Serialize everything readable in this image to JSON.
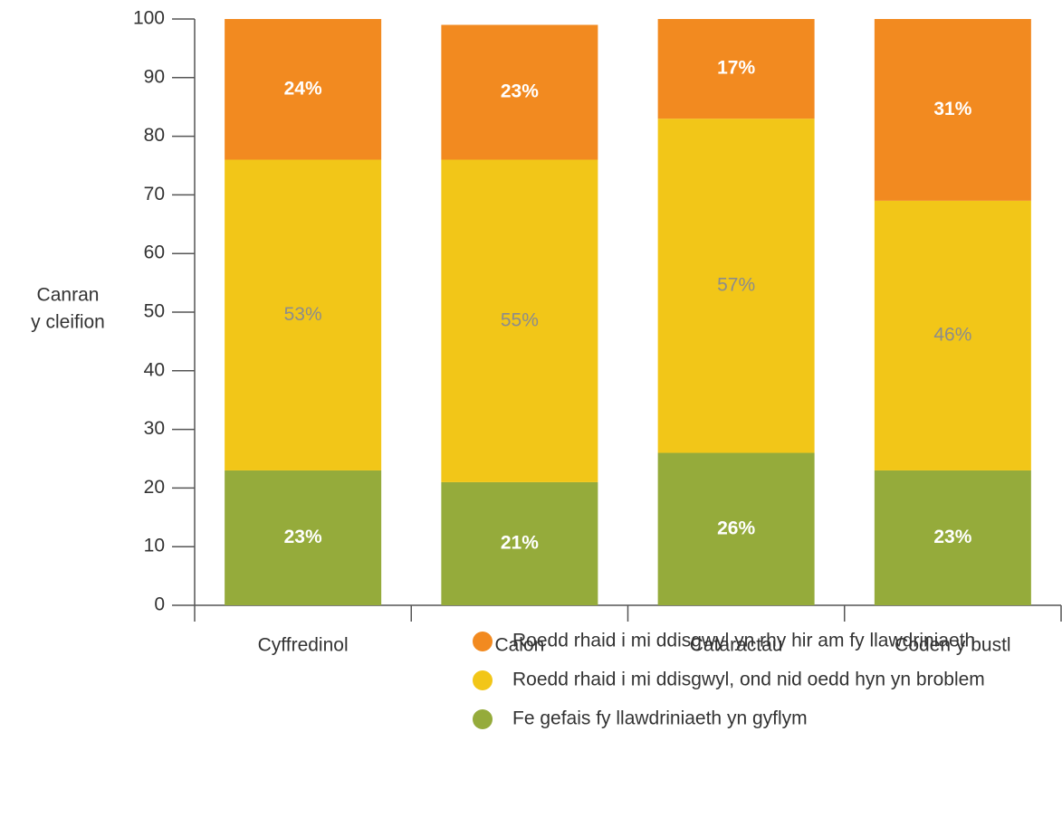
{
  "chart_data": {
    "type": "stacked_bar",
    "ylabel": [
      "Canran",
      "y cleifion"
    ],
    "categories": [
      "Cyffredinol",
      "Calon",
      "Cataractau",
      "Coden y bustl"
    ],
    "ylim": [
      0,
      100
    ],
    "yticks": [
      0,
      10,
      20,
      30,
      40,
      50,
      60,
      70,
      80,
      90,
      100
    ],
    "grid": false,
    "series": [
      {
        "name": "Fe gefais fy llawdriniaeth yn gyflym",
        "color": "#95ab3b",
        "values": [
          23,
          21,
          26,
          23
        ],
        "value_labels": [
          "23%",
          "21%",
          "26%",
          "23%"
        ]
      },
      {
        "name": "Roedd rhaid i mi ddisgwyl, ond nid oedd hyn yn broblem",
        "color": "#f2c618",
        "values": [
          53,
          55,
          57,
          46
        ],
        "value_labels": [
          "53%",
          "55%",
          "57%",
          "46%"
        ]
      },
      {
        "name": "Roedd rhaid i mi ddisgwyl yn rhy hir am fy llawdriniaeth",
        "color": "#f28a20",
        "values": [
          24,
          23,
          17,
          31
        ],
        "value_labels": [
          "24%",
          "23%",
          "17%",
          "31%"
        ]
      }
    ]
  }
}
